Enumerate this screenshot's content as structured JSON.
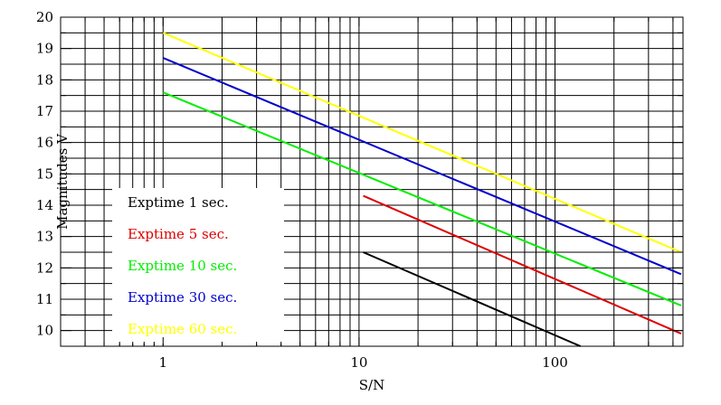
{
  "chart_data": {
    "type": "line",
    "xlabel": "S/N",
    "ylabel": "Magnitudes V",
    "x_scale": "log",
    "xlim": [
      0.3,
      450
    ],
    "ylim": [
      9.5,
      20
    ],
    "grid": true,
    "x_tick_labels": [
      "1",
      "10",
      "100"
    ],
    "x_tick_values": [
      1,
      10,
      100
    ],
    "y_tick_labels": [
      "10",
      "11",
      "12",
      "13",
      "14",
      "15",
      "16",
      "17",
      "18",
      "19",
      "20"
    ],
    "y_tick_values": [
      10,
      11,
      12,
      13,
      14,
      15,
      16,
      17,
      18,
      19,
      20
    ],
    "legend_placement": "lower-left",
    "series": [
      {
        "name": "Exptime 1 sec.",
        "color": "#000000",
        "x": [
          10.5,
          135
        ],
        "y": [
          12.5,
          9.5
        ]
      },
      {
        "name": "Exptime 5 sec.",
        "color": "#dd0000",
        "x": [
          10.5,
          440
        ],
        "y": [
          14.3,
          9.9
        ]
      },
      {
        "name": "Exptime 10 sec.",
        "color": "#00ee00",
        "x": [
          1,
          440
        ],
        "y": [
          17.6,
          10.8
        ]
      },
      {
        "name": "Exptime 30 sec.",
        "color": "#0000cc",
        "x": [
          1,
          440
        ],
        "y": [
          18.7,
          11.8
        ]
      },
      {
        "name": "Exptime 60 sec.",
        "color": "#ffff00",
        "x": [
          1,
          440
        ],
        "y": [
          19.5,
          12.5
        ]
      }
    ]
  }
}
